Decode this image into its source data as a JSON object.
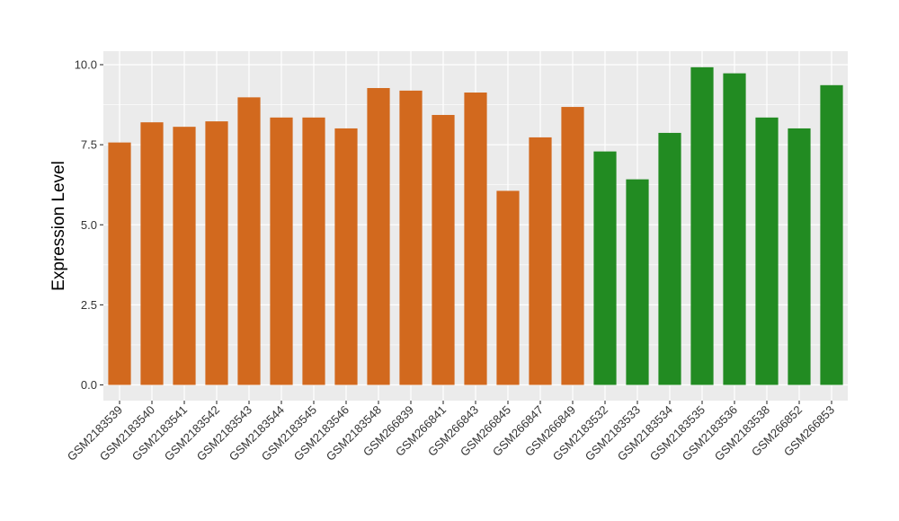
{
  "chart_data": {
    "type": "bar",
    "title": "",
    "xlabel": "",
    "ylabel": "Expression Level",
    "ylim": [
      0,
      10.4
    ],
    "y_ticks": [
      0.0,
      2.5,
      5.0,
      7.5,
      10.0
    ],
    "y_tick_labels": [
      "0.0",
      "2.5",
      "5.0",
      "7.5",
      "10.0"
    ],
    "grid": true,
    "legend": "none",
    "colors": {
      "group_a": "#D2691E",
      "group_b": "#228B22",
      "panel": "#EBEBEB",
      "grid": "#FFFFFF"
    },
    "categories": [
      "GSM2183539",
      "GSM2183540",
      "GSM2183541",
      "GSM2183542",
      "GSM2183543",
      "GSM2183544",
      "GSM2183545",
      "GSM2183546",
      "GSM2183548",
      "GSM266839",
      "GSM266841",
      "GSM266843",
      "GSM266845",
      "GSM266847",
      "GSM266849",
      "GSM2183532",
      "GSM2183533",
      "GSM2183534",
      "GSM2183535",
      "GSM2183536",
      "GSM2183538",
      "GSM266852",
      "GSM266853"
    ],
    "values": [
      7.57,
      8.2,
      8.06,
      8.23,
      8.98,
      8.35,
      8.35,
      8.01,
      9.27,
      9.19,
      8.43,
      9.13,
      6.06,
      7.73,
      8.68,
      7.29,
      6.42,
      7.87,
      9.92,
      9.73,
      8.35,
      8.01,
      9.36
    ],
    "groups": [
      "group_a",
      "group_a",
      "group_a",
      "group_a",
      "group_a",
      "group_a",
      "group_a",
      "group_a",
      "group_a",
      "group_a",
      "group_a",
      "group_a",
      "group_a",
      "group_a",
      "group_a",
      "group_b",
      "group_b",
      "group_b",
      "group_b",
      "group_b",
      "group_b",
      "group_b",
      "group_b"
    ]
  }
}
